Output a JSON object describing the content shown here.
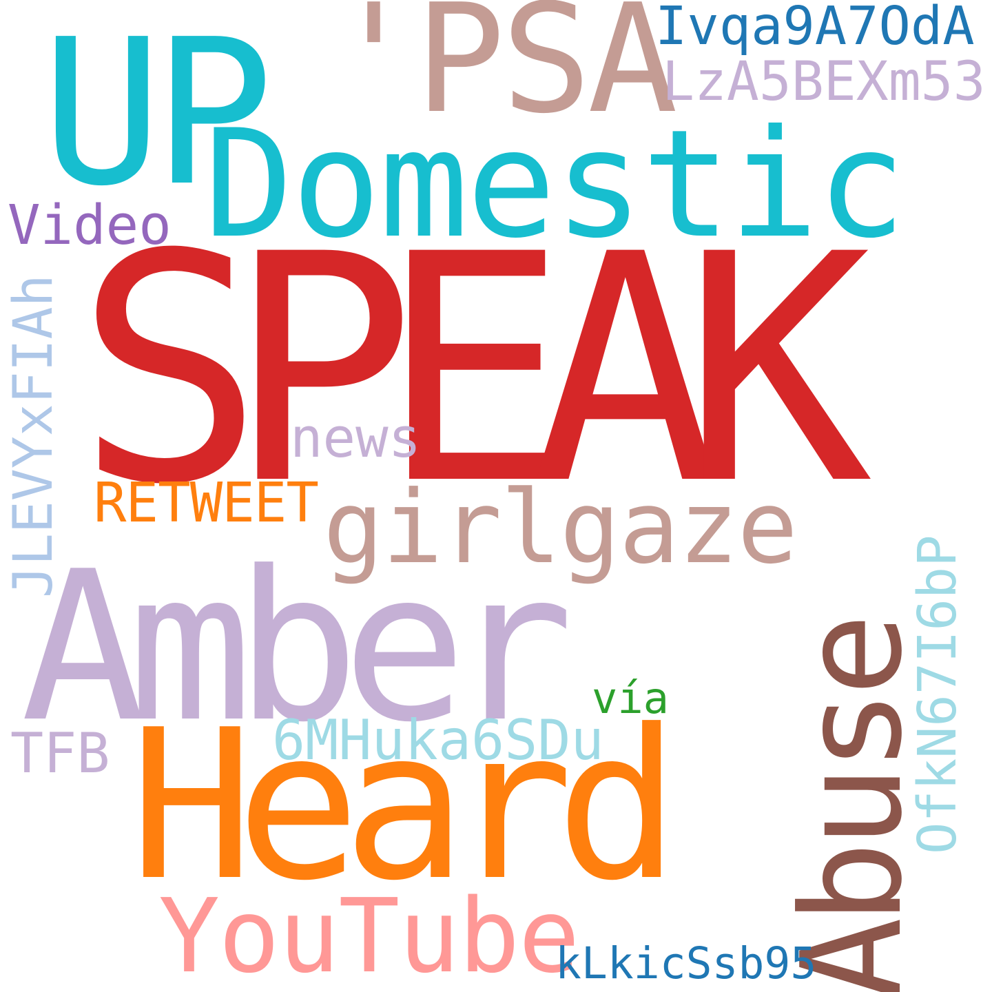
{
  "words": {
    "speak": {
      "text": "SPEAK",
      "color": "#d62728"
    },
    "up": {
      "text": "UP",
      "color": "#17becf"
    },
    "psa": {
      "text": "'PSA",
      "color": "#c49c94"
    },
    "ivqa": {
      "text": "Ivqa9A7OdA",
      "color": "#1f77b4"
    },
    "lza": {
      "text": "LzA5BEXm53",
      "color": "#c5b0d5"
    },
    "domestic": {
      "text": "Domestic",
      "color": "#17becf"
    },
    "video": {
      "text": "Video",
      "color": "#9467bd"
    },
    "jlevy": {
      "text": "JLEVYxFIAh",
      "color": "#aec7e8"
    },
    "news": {
      "text": "news",
      "color": "#c5b0d5"
    },
    "retweet": {
      "text": "RETWEET",
      "color": "#ff7f0e"
    },
    "girlgaze": {
      "text": "girlgaze",
      "color": "#c49c94"
    },
    "abuse": {
      "text": "Abuse",
      "color": "#8c564b"
    },
    "amber": {
      "text": "Amber",
      "color": "#c5b0d5"
    },
    "ofkn": {
      "text": "OfkN67I6bP",
      "color": "#9edae5"
    },
    "via": {
      "text": "vía",
      "color": "#2ca02c"
    },
    "tfb": {
      "text": "TFB",
      "color": "#c5b0d5"
    },
    "sixm": {
      "text": "6MHuka6SDu",
      "color": "#9edae5"
    },
    "heard": {
      "text": "Heard",
      "color": "#ff7f0e"
    },
    "youtube": {
      "text": "YouTube",
      "color": "#ff9896"
    },
    "klkic": {
      "text": "kLkicSsb95",
      "color": "#1f77b4"
    }
  }
}
